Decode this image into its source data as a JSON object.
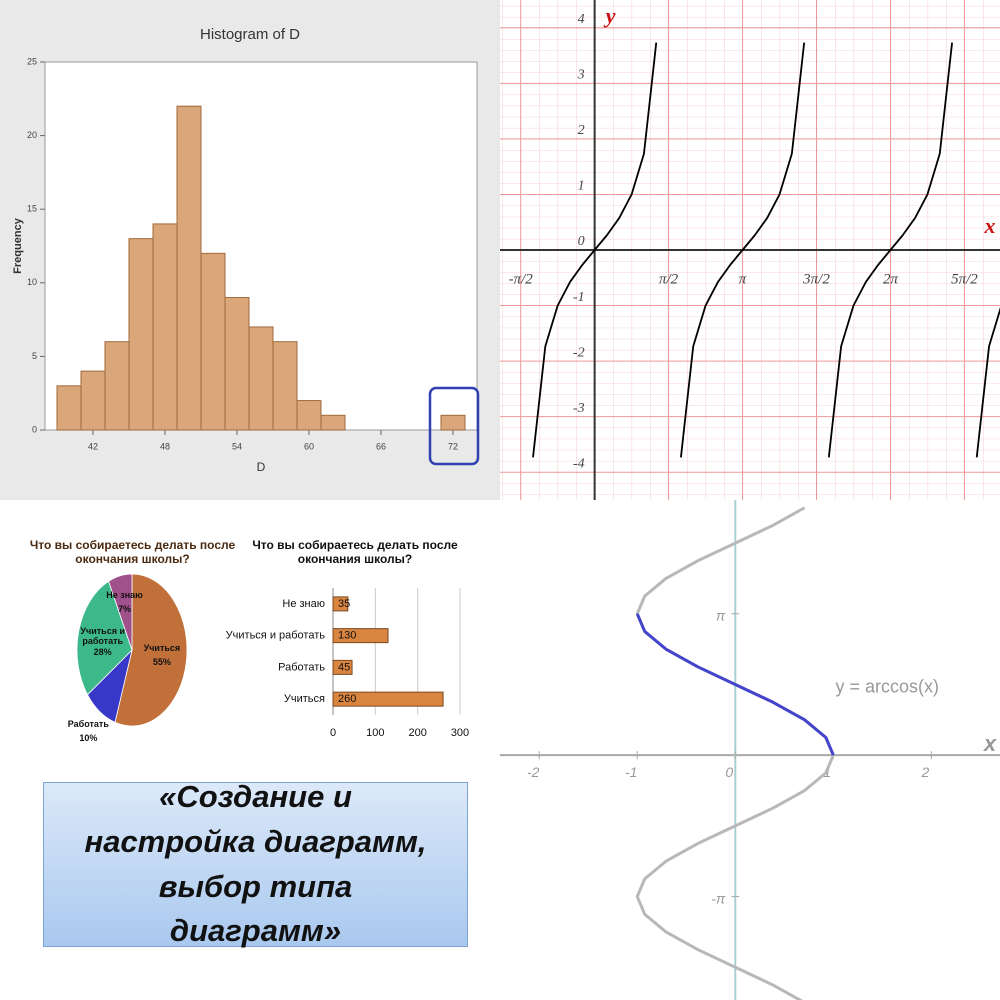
{
  "chart_data": [
    {
      "type": "histogram",
      "title": "Histogram of D",
      "xlabel": "D",
      "ylabel": "Frequency",
      "bins": [
        39,
        41,
        43,
        45,
        47,
        49,
        51,
        53,
        55,
        57,
        59,
        61,
        63,
        65,
        67,
        69,
        71,
        73
      ],
      "values": [
        3,
        4,
        6,
        13,
        14,
        22,
        12,
        9,
        7,
        6,
        2,
        1,
        0,
        0,
        0,
        0,
        1
      ],
      "color": "#d9a77a",
      "xlim": [
        38,
        74
      ],
      "ylim": [
        0,
        25
      ],
      "xticks": [
        42,
        48,
        54,
        60,
        66,
        72
      ],
      "yticks": [
        0,
        5,
        10,
        15,
        20,
        25
      ]
    },
    {
      "type": "line",
      "xlabel": "x",
      "ylabel": "y",
      "x": [
        -1.8326,
        -1.5708,
        -1.309,
        -1.0472,
        -0.7854,
        -0.5236,
        -0.2618,
        0,
        0.2618,
        0.5236,
        0.7854,
        1.0472,
        1.309,
        1.5708,
        1.8326,
        2.0944,
        2.3562,
        2.618,
        2.8798,
        3.1416,
        3.4034,
        3.6652,
        3.927,
        4.1888,
        4.4506,
        4.7124,
        4.9742,
        5.236,
        5.4978,
        5.7596,
        6.0214,
        6.2832,
        6.545,
        6.8068,
        7.0686,
        7.3304,
        7.5922,
        7.854,
        8.1158,
        8.3776,
        8.6394
      ],
      "series": [
        {
          "color": "#000000",
          "values": [
            3.7321,
            null,
            -3.7321,
            -1.7321,
            -1,
            -0.5774,
            -0.2679,
            0,
            0.2679,
            0.5774,
            1,
            1.7321,
            3.7321,
            null,
            -3.7321,
            -1.7321,
            -1,
            -0.5774,
            -0.2679,
            0,
            0.2679,
            0.5774,
            1,
            1.7321,
            3.7321,
            null,
            -3.7321,
            -1.7321,
            -1,
            -0.5774,
            -0.2679,
            0,
            0.2679,
            0.5774,
            1,
            1.7321,
            3.7321,
            null,
            -3.7321,
            -1.7321,
            -1
          ]
        }
      ],
      "xlim": [
        -2.01,
        8.61
      ],
      "ylim": [
        -4.5,
        4.5
      ],
      "xticks": [
        {
          "value": -1.5708,
          "label": "-π/2"
        },
        {
          "value": 1.5708,
          "label": "π/2"
        },
        {
          "value": 3.1416,
          "label": "π"
        },
        {
          "value": 4.7124,
          "label": "3π/2"
        },
        {
          "value": 6.2832,
          "label": "2π"
        },
        {
          "value": 7.854,
          "label": "5π/2"
        }
      ],
      "yticks": [
        -4,
        -3,
        -2,
        -1,
        0,
        1,
        2,
        3,
        4
      ],
      "grid": true
    },
    {
      "type": "pie",
      "title": "Что вы собираетесь делать после окончания школы?",
      "categories": [
        "Учиться",
        "Работать",
        "Учиться и работать",
        "Не знаю"
      ],
      "values": [
        55,
        10,
        28,
        7
      ],
      "value_labels": [
        "55%",
        "10%",
        "28%",
        "7%"
      ],
      "colors": [
        "#c07038",
        "#3838c8",
        "#3cb88a",
        "#a0508a"
      ]
    },
    {
      "type": "bar",
      "orientation": "horizontal",
      "title": "Что вы собираетесь делать после окончания школы?",
      "categories": [
        "Не знаю",
        "Учиться и работать",
        "Работать",
        "Учиться"
      ],
      "values": [
        35,
        130,
        45,
        260
      ],
      "color": "#d9843f",
      "xlim": [
        0,
        300
      ],
      "xticks": [
        0,
        100,
        200,
        300
      ],
      "grid": true
    },
    {
      "type": "line",
      "label": "y = arccos(x)",
      "xlabel": "x",
      "series": [
        {
          "color": "#b8b8b8",
          "x": [
            0.7071,
            0.3827,
            0,
            -0.3827,
            -0.7071,
            -0.9239,
            -1,
            -0.9239,
            -0.7071,
            -0.3827,
            0,
            0.3827,
            0.7071,
            0.9239,
            1,
            0.9239,
            0.7071,
            0.3827,
            0,
            -0.3827,
            -0.7071,
            -0.9239,
            -1,
            -0.9239,
            -0.7071,
            -0.3827,
            0,
            0.3827,
            0.7071
          ],
          "y": [
            -5.4978,
            -5.1051,
            -4.7124,
            -4.3197,
            -3.927,
            -3.5343,
            -3.1416,
            -2.7489,
            -2.3562,
            -1.9635,
            -1.5708,
            -1.1781,
            -0.7854,
            -0.3927,
            0,
            0.3927,
            0.7854,
            1.1781,
            1.5708,
            1.9635,
            2.3562,
            2.7489,
            3.1416,
            3.5343,
            3.927,
            4.3197,
            4.7124,
            5.1051,
            5.4978
          ]
        },
        {
          "color": "#4444cc",
          "x": [
            1,
            0.9239,
            0.7071,
            0.3827,
            0,
            -0.3827,
            -0.7071,
            -0.9239,
            -1
          ],
          "y": [
            0,
            0.3927,
            0.7854,
            1.1781,
            1.5708,
            1.9635,
            2.3562,
            2.7489,
            3.1416
          ]
        }
      ],
      "xlim": [
        -2.4,
        2.7
      ],
      "ylim": [
        -5.44,
        5.67
      ],
      "xticks": [
        -2,
        -1,
        0,
        1,
        2
      ],
      "yticks": [
        {
          "value": -3.1416,
          "label": "-π"
        },
        {
          "value": 3.1416,
          "label": "π"
        }
      ]
    }
  ],
  "banner": {
    "text": "«Создание и настройка диаграмм, выбор типа диаграмм»"
  }
}
